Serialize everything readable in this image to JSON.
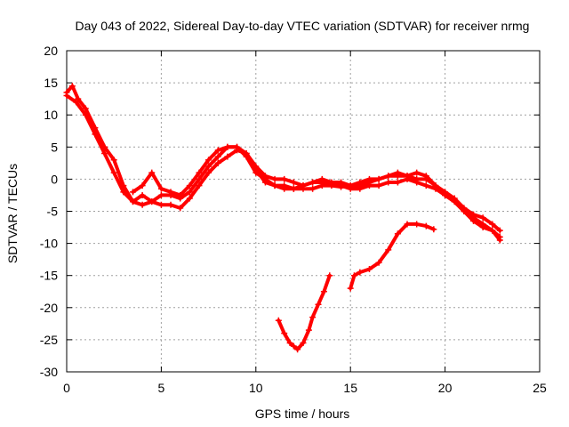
{
  "chart_data": {
    "type": "scatter",
    "title": "Day 043 of 2022, Sidereal Day-to-day VTEC variation (SDTVAR) for receiver nrmg",
    "xlabel": "GPS time / hours",
    "ylabel": "SDTVAR / TECUs",
    "xlim": [
      0,
      25
    ],
    "ylim": [
      -30,
      20
    ],
    "x_ticks": [
      "0",
      "5",
      "10",
      "15",
      "20",
      "25"
    ],
    "y_ticks": [
      "20",
      "15",
      "10",
      "5",
      "0",
      "-5",
      "-10",
      "-15",
      "-20",
      "-25",
      "-30"
    ],
    "grid": true,
    "marker": "plus",
    "series_color": "#ff0000",
    "series": [
      {
        "name": "track-1",
        "x": [
          0.0,
          0.3,
          0.6,
          1.0,
          1.5,
          2.0,
          2.5,
          3.0,
          3.5,
          4.0,
          4.5,
          5.0,
          5.5,
          6.0,
          6.5,
          7.0,
          7.5,
          8.0,
          8.5,
          9.0,
          9.5,
          10.0,
          10.5,
          11.0,
          11.5,
          12.0,
          12.5,
          13.0,
          13.5,
          14.0,
          14.5,
          15.0,
          15.5,
          16.0,
          16.5,
          17.0,
          17.5,
          18.0,
          18.5,
          19.0,
          19.5,
          20.0,
          20.5,
          21.0,
          21.5,
          22.0,
          22.5,
          22.9
        ],
        "y": [
          13.5,
          14.5,
          12.5,
          11.0,
          8.0,
          5.0,
          3.0,
          -1.0,
          -3.5,
          -4.0,
          -3.5,
          -2.5,
          -2.5,
          -3.0,
          -2.0,
          0.0,
          2.0,
          3.5,
          5.0,
          5.0,
          4.0,
          1.5,
          -0.5,
          -1.0,
          -1.5,
          -1.5,
          -1.5,
          -1.5,
          -1.0,
          -1.0,
          -1.2,
          -1.0,
          -1.0,
          -0.5,
          0.0,
          0.5,
          0.5,
          0.5,
          0.0,
          0.0,
          -1.0,
          -2.0,
          -3.0,
          -4.5,
          -5.5,
          -6.0,
          -7.0,
          -8.0
        ]
      },
      {
        "name": "track-2",
        "x": [
          0.0,
          0.5,
          1.0,
          1.5,
          2.0,
          2.5,
          3.0,
          3.5,
          4.0,
          4.5,
          5.0,
          5.5,
          6.0,
          6.5,
          7.0,
          7.5,
          8.0,
          8.5,
          9.0,
          9.5,
          10.0,
          10.5,
          11.0,
          11.5,
          12.0,
          12.5,
          13.0,
          13.5,
          14.0,
          14.5,
          15.0,
          15.5,
          16.0,
          16.5,
          17.0,
          17.5,
          18.0,
          18.5,
          19.0,
          19.5,
          20.0,
          20.5,
          21.0,
          21.5,
          22.0,
          22.5,
          22.9
        ],
        "y": [
          13.0,
          12.0,
          10.0,
          7.0,
          4.0,
          1.0,
          -2.0,
          -3.5,
          -2.5,
          -3.5,
          -4.0,
          -4.0,
          -4.5,
          -3.0,
          -1.0,
          1.0,
          2.5,
          3.5,
          4.5,
          4.0,
          2.0,
          0.5,
          0.0,
          0.0,
          -0.5,
          -1.0,
          -0.5,
          -0.5,
          -0.8,
          -1.0,
          -1.5,
          -1.5,
          -1.0,
          -1.0,
          -0.5,
          -0.5,
          0.0,
          -0.5,
          -1.0,
          -1.5,
          -2.5,
          -3.5,
          -5.0,
          -6.0,
          -7.0,
          -8.0,
          -9.0
        ]
      },
      {
        "name": "track-3",
        "x": [
          3.5,
          4.0,
          4.5,
          5.0,
          5.5,
          6.0,
          6.5,
          7.0,
          7.5,
          8.0,
          8.5,
          9.0,
          9.5,
          10.0,
          10.5,
          11.0,
          11.5,
          12.0,
          12.5,
          13.0,
          13.5,
          14.0,
          14.5,
          15.0,
          15.5,
          16.0,
          16.5,
          17.0,
          17.5,
          18.0,
          18.5,
          19.0,
          19.5,
          20.0,
          20.5,
          21.0,
          21.5,
          22.0,
          22.5,
          22.9
        ],
        "y": [
          -2.0,
          -1.0,
          1.0,
          -1.5,
          -2.0,
          -2.5,
          -1.0,
          1.0,
          3.0,
          4.5,
          5.0,
          5.0,
          3.5,
          1.0,
          0.0,
          -1.0,
          -1.0,
          -1.5,
          -1.0,
          -0.5,
          0.0,
          -0.5,
          -0.5,
          -1.0,
          -0.5,
          0.0,
          0.0,
          0.5,
          1.0,
          0.5,
          1.0,
          0.5,
          -1.0,
          -2.5,
          -3.5,
          -5.0,
          -6.5,
          -7.5,
          -8.0,
          -9.5
        ]
      },
      {
        "name": "track-4",
        "x": [
          11.2,
          11.5,
          11.8,
          12.0,
          12.2,
          12.5,
          12.8,
          13.0,
          13.3,
          13.6,
          13.9
        ],
        "y": [
          -22.0,
          -24.0,
          -25.5,
          -26.0,
          -26.5,
          -25.5,
          -23.5,
          -21.5,
          -19.5,
          -17.5,
          -15.0
        ]
      },
      {
        "name": "track-5",
        "x": [
          15.0,
          15.2,
          15.5,
          16.0,
          16.5,
          17.0,
          17.5,
          18.0,
          18.5,
          19.0,
          19.4
        ],
        "y": [
          -17.0,
          -15.0,
          -14.5,
          -14.0,
          -13.0,
          -11.0,
          -8.5,
          -7.0,
          -7.0,
          -7.3,
          -7.8
        ]
      }
    ]
  }
}
